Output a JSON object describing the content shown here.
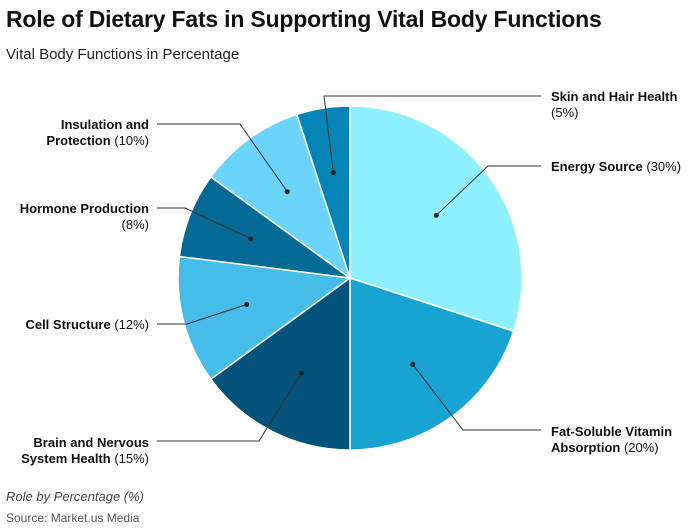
{
  "title": "Role of Dietary Fats in Supporting Vital Body Functions",
  "subtitle": "Vital Body Functions in Percentage",
  "footnote": "Role by Percentage (%)",
  "source": "Source: Market.us Media",
  "chart_data": {
    "type": "pie",
    "start_angle_deg": 0,
    "direction": "clockwise",
    "slices": [
      {
        "name": "Energy Source",
        "value": 30,
        "display": "(30%)",
        "color": "#8ef1ff"
      },
      {
        "name": "Fat-Soluble Vitamin Absorption",
        "value": 20,
        "display": "(20%)",
        "color": "#18a4d2"
      },
      {
        "name": "Brain and Nervous System Health",
        "value": 15,
        "display": "(15%)",
        "color": "#05527a"
      },
      {
        "name": "Cell Structure",
        "value": 12,
        "display": "(12%)",
        "color": "#46bce8"
      },
      {
        "name": "Hormone Production",
        "value": 8,
        "display": "(8%)",
        "color": "#066a96"
      },
      {
        "name": "Insulation and Protection",
        "value": 10,
        "display": "(10%)",
        "color": "#6ad4fa"
      },
      {
        "name": "Skin and Hair Health",
        "value": 5,
        "display": "(5%)",
        "color": "#0584b8"
      }
    ]
  }
}
